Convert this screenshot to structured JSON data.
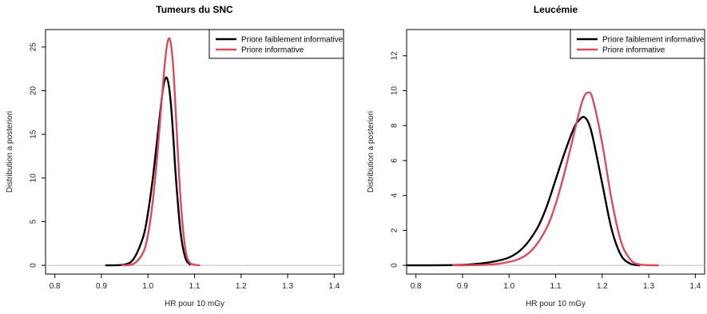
{
  "chart_data": [
    {
      "type": "line",
      "title": "Tumeurs du SNC",
      "xlabel": "HR pour 10 mGy",
      "ylabel": "Distribution a posteriori",
      "xlim": [
        0.78,
        1.42
      ],
      "ylim": [
        -1,
        27
      ],
      "xticks": [
        0.8,
        0.9,
        1.0,
        1.1,
        1.2,
        1.3,
        1.4
      ],
      "xtick_labels": [
        "0.8",
        "0.9",
        "1.0",
        "1.1",
        "1.2",
        "1.3",
        "1.4"
      ],
      "yticks": [
        0,
        5,
        10,
        15,
        20,
        25
      ],
      "ytick_labels": [
        "0",
        "5",
        "10",
        "15",
        "20",
        "25"
      ],
      "baseline": 0,
      "legend": "top-right",
      "series": [
        {
          "name": "Priore faiblement informative",
          "color": "#000000",
          "x": [
            0.91,
            0.95,
            0.97,
            0.99,
            1.0,
            1.01,
            1.02,
            1.03,
            1.035,
            1.04,
            1.045,
            1.05,
            1.055,
            1.06,
            1.07,
            1.08,
            1.09
          ],
          "y": [
            0,
            0.1,
            0.8,
            3.3,
            6.0,
            9.8,
            14.5,
            19.3,
            21.0,
            21.5,
            20.5,
            18.0,
            14.2,
            10.0,
            3.8,
            0.9,
            0.1
          ]
        },
        {
          "name": "Priore informative",
          "color": "#dc4a5d",
          "x": [
            0.945,
            0.97,
            0.99,
            1.0,
            1.01,
            1.02,
            1.03,
            1.035,
            1.04,
            1.045,
            1.05,
            1.055,
            1.06,
            1.07,
            1.08,
            1.09,
            1.11
          ],
          "y": [
            0,
            0.2,
            1.5,
            3.5,
            7.2,
            12.6,
            19.2,
            22.4,
            24.9,
            26.0,
            25.1,
            22.1,
            17.2,
            7.6,
            2.0,
            0.3,
            0
          ]
        }
      ]
    },
    {
      "type": "line",
      "title": "Leucémie",
      "xlabel": "HR pour 10 mGy",
      "ylabel": "Distribution a posteriori",
      "xlim": [
        0.78,
        1.42
      ],
      "ylim": [
        -0.5,
        13.5
      ],
      "xticks": [
        0.8,
        0.9,
        1.0,
        1.1,
        1.2,
        1.3,
        1.4
      ],
      "xtick_labels": [
        "0.8",
        "0.9",
        "1.0",
        "1.1",
        "1.2",
        "1.3",
        "1.4"
      ],
      "yticks": [
        0,
        2,
        4,
        6,
        8,
        10,
        12
      ],
      "ytick_labels": [
        "0",
        "2",
        "4",
        "6",
        "8",
        "10",
        "12"
      ],
      "baseline": 0,
      "legend": "top-right",
      "series": [
        {
          "name": "Priore faiblement informative",
          "color": "#000000",
          "x": [
            0.78,
            0.88,
            0.92,
            0.96,
            1.0,
            1.03,
            1.06,
            1.08,
            1.1,
            1.12,
            1.14,
            1.15,
            1.16,
            1.17,
            1.18,
            1.2,
            1.22,
            1.24,
            1.26,
            1.28
          ],
          "y": [
            0,
            0.01,
            0.06,
            0.18,
            0.45,
            1.0,
            2.1,
            3.3,
            4.9,
            6.5,
            7.9,
            8.3,
            8.5,
            8.2,
            7.3,
            4.7,
            2.1,
            0.6,
            0.1,
            0
          ]
        },
        {
          "name": "Priore informative",
          "color": "#dc4a5d",
          "x": [
            0.88,
            0.94,
            0.98,
            1.02,
            1.05,
            1.08,
            1.1,
            1.12,
            1.14,
            1.15,
            1.16,
            1.17,
            1.18,
            1.2,
            1.22,
            1.24,
            1.26,
            1.28,
            1.32
          ],
          "y": [
            0,
            0.02,
            0.1,
            0.35,
            0.9,
            2.1,
            3.5,
            5.4,
            7.6,
            8.7,
            9.6,
            9.9,
            9.5,
            7.0,
            3.8,
            1.4,
            0.35,
            0.05,
            0
          ]
        }
      ]
    }
  ]
}
